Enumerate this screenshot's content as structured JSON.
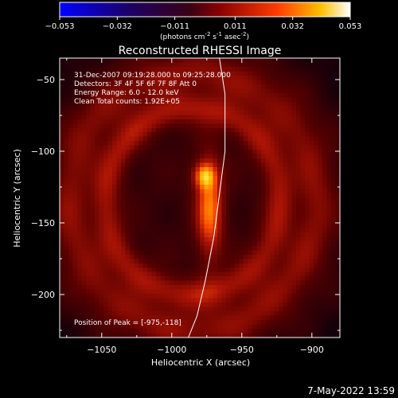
{
  "figure": {
    "title": "Reconstructed RHESSI Image",
    "annotations": [
      "31-Dec-2007 09:19:28.000 to 09:25:28.000",
      "Detectors: 3F 4F 5F 6F 7F 8F  Att 0",
      "Energy Range: 6.0 - 12.0 keV",
      "Clean     Total counts: 1.92E+05"
    ],
    "peak_label": "Position of Peak = [-975,-118]",
    "timestamp": "7-May-2022 13:59"
  },
  "colorbar": {
    "min": -0.053,
    "max": 0.053,
    "ticks": [
      "-0.053",
      "-0.032",
      "-0.011",
      "0.011",
      "0.032",
      "0.053"
    ],
    "unit_html": "(photons cm<tspan baseline-shift=\"super\" font-size=\"7\">-2</tspan> s<tspan baseline-shift=\"super\" font-size=\"7\">-1</tspan> asec<tspan baseline-shift=\"super\" font-size=\"7\">-2</tspan>)"
  },
  "axes": {
    "xlabel": "Heliocentric X (arcsec)",
    "ylabel": "Heliocentric Y (arcsec)",
    "xlim": [
      -1080,
      -880
    ],
    "ylim": [
      -230,
      -35
    ],
    "xticks": [
      -1050,
      -1000,
      -950,
      -900
    ],
    "yticks": [
      -50,
      -100,
      -150,
      -200
    ],
    "xtick_labels": [
      "−1050",
      "−1000",
      "−950",
      "−900"
    ],
    "ytick_labels": [
      "−50",
      "−100",
      "−150",
      "−200"
    ]
  },
  "image_map": {
    "peak": [
      -975,
      -118
    ],
    "rings": [
      {
        "cx": -985,
        "cy": -135,
        "rx": 62,
        "ry": 65,
        "intensity": 0.3
      },
      {
        "cx": -985,
        "cy": -135,
        "rx": 88,
        "ry": 90,
        "intensity": 0.24
      }
    ],
    "source": {
      "cx": -973,
      "cy": -140,
      "sx": 10,
      "sy": 36,
      "intensity": 0.55
    },
    "hot_core": {
      "cx": -977,
      "cy": -117,
      "sx": 8,
      "sy": 9,
      "intensity": 0.45
    }
  },
  "limb": {
    "points": [
      [
        -966,
        -35
      ],
      [
        -962,
        -60
      ],
      [
        -962,
        -100
      ],
      [
        -966,
        -130
      ],
      [
        -970,
        -160
      ],
      [
        -976,
        -190
      ],
      [
        -982,
        -215
      ],
      [
        -989,
        -232
      ]
    ]
  }
}
